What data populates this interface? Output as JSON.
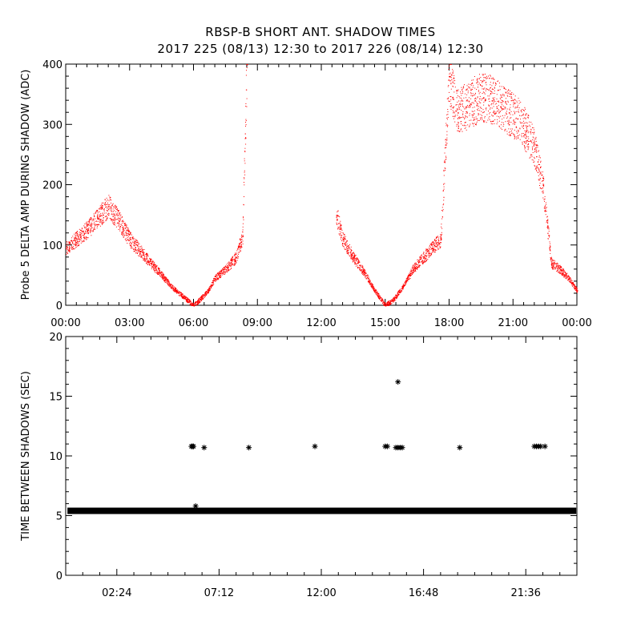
{
  "header": {
    "title": "RBSP-B SHORT ANT. SHADOW TIMES",
    "subtitle": "2017 225 (08/13) 12:30 to 2017 226 (08/14) 12:30"
  },
  "colors": {
    "top_points": "#ff0000",
    "bottom_points": "#000000",
    "axes": "#000000"
  },
  "chart_data": [
    {
      "type": "scatter",
      "title": "",
      "xlabel": "",
      "ylabel": "Probe 5 DELTA AMP DURING SHADOW (ADC)",
      "xlim": [
        0,
        24
      ],
      "ylim": [
        0,
        400
      ],
      "xticks": [
        "00:00",
        "03:00",
        "06:00",
        "09:00",
        "12:00",
        "15:00",
        "18:00",
        "21:00",
        "00:00"
      ],
      "yticks": [
        "0",
        "100",
        "200",
        "300",
        "400"
      ],
      "grid": false,
      "marker_color": "#ff0000",
      "series": [
        {
          "x_hours": [
            0,
            0.5,
            1,
            1.5,
            2,
            2.5,
            3,
            3.5,
            4,
            4.5,
            5,
            5.5,
            6.0,
            6.3,
            6.7,
            7,
            7.5,
            8,
            8.3,
            8.5,
            12.7,
            13,
            13.5,
            14,
            14.5,
            15.0,
            15.4,
            15.8,
            16.3,
            16.8,
            17.2,
            17.6,
            18.0,
            18.4,
            18.8,
            19.2,
            19.6,
            20.0,
            20.4,
            20.8,
            21.2,
            21.6,
            22.0,
            22.4,
            22.8,
            23.2,
            23.6,
            24.0
          ],
          "y": [
            95,
            110,
            125,
            145,
            165,
            140,
            110,
            90,
            70,
            50,
            30,
            15,
            0,
            10,
            25,
            45,
            60,
            80,
            115,
            400,
            150,
            110,
            80,
            55,
            25,
            0,
            10,
            30,
            60,
            80,
            95,
            110,
            380,
            320,
            330,
            340,
            345,
            340,
            330,
            320,
            310,
            290,
            260,
            200,
            70,
            60,
            45,
            25
          ]
        }
      ]
    },
    {
      "type": "scatter",
      "title": "",
      "xlabel": "",
      "ylabel": "TIME BETWEEN SHADOWS (SEC)",
      "xlim": [
        0,
        24
      ],
      "ylim": [
        0,
        20
      ],
      "xticks": [
        "02:24",
        "07:12",
        "12:00",
        "16:48",
        "21:36"
      ],
      "yticks": [
        "0",
        "5",
        "10",
        "15",
        "20"
      ],
      "grid": false,
      "marker": "asterisk",
      "marker_color": "#000000",
      "baseline": {
        "y": 5.4,
        "x_range": [
          0.1,
          23.95
        ]
      },
      "series": [
        {
          "x_hours": [
            5.9,
            5.95,
            6.0,
            6.5,
            8.6,
            11.7,
            15.0,
            15.1,
            15.5,
            15.6,
            15.7,
            15.8,
            18.5,
            22.0,
            22.1,
            22.2,
            22.3,
            22.5,
            6.1,
            15.6
          ],
          "y": [
            10.8,
            10.8,
            10.8,
            10.7,
            10.7,
            10.8,
            10.8,
            10.8,
            10.7,
            10.7,
            10.7,
            10.7,
            10.7,
            10.8,
            10.8,
            10.8,
            10.8,
            10.8,
            5.8,
            16.2
          ]
        }
      ]
    }
  ]
}
